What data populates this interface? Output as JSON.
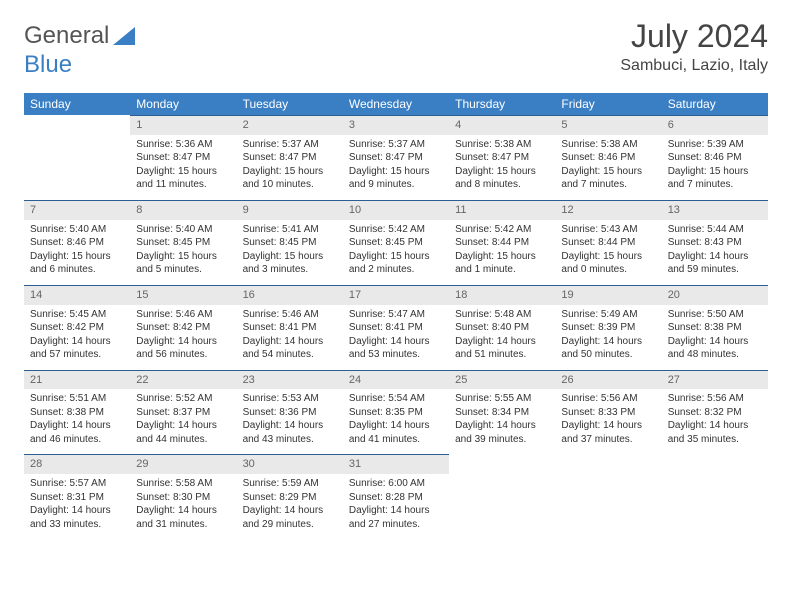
{
  "brand": {
    "part1": "General",
    "part2": "Blue"
  },
  "title": "July 2024",
  "location": "Sambuci, Lazio, Italy",
  "colors": {
    "header_bg": "#3a7fc4",
    "header_text": "#ffffff",
    "daynum_bg": "#e9e9e9",
    "daynum_border": "#2b5f93",
    "page_bg": "#ffffff",
    "text": "#333333"
  },
  "weekdays": [
    "Sunday",
    "Monday",
    "Tuesday",
    "Wednesday",
    "Thursday",
    "Friday",
    "Saturday"
  ],
  "weeks": [
    [
      {
        "n": "",
        "sr": "",
        "ss": "",
        "dl": ""
      },
      {
        "n": "1",
        "sr": "Sunrise: 5:36 AM",
        "ss": "Sunset: 8:47 PM",
        "dl": "Daylight: 15 hours and 11 minutes."
      },
      {
        "n": "2",
        "sr": "Sunrise: 5:37 AM",
        "ss": "Sunset: 8:47 PM",
        "dl": "Daylight: 15 hours and 10 minutes."
      },
      {
        "n": "3",
        "sr": "Sunrise: 5:37 AM",
        "ss": "Sunset: 8:47 PM",
        "dl": "Daylight: 15 hours and 9 minutes."
      },
      {
        "n": "4",
        "sr": "Sunrise: 5:38 AM",
        "ss": "Sunset: 8:47 PM",
        "dl": "Daylight: 15 hours and 8 minutes."
      },
      {
        "n": "5",
        "sr": "Sunrise: 5:38 AM",
        "ss": "Sunset: 8:46 PM",
        "dl": "Daylight: 15 hours and 7 minutes."
      },
      {
        "n": "6",
        "sr": "Sunrise: 5:39 AM",
        "ss": "Sunset: 8:46 PM",
        "dl": "Daylight: 15 hours and 7 minutes."
      }
    ],
    [
      {
        "n": "7",
        "sr": "Sunrise: 5:40 AM",
        "ss": "Sunset: 8:46 PM",
        "dl": "Daylight: 15 hours and 6 minutes."
      },
      {
        "n": "8",
        "sr": "Sunrise: 5:40 AM",
        "ss": "Sunset: 8:45 PM",
        "dl": "Daylight: 15 hours and 5 minutes."
      },
      {
        "n": "9",
        "sr": "Sunrise: 5:41 AM",
        "ss": "Sunset: 8:45 PM",
        "dl": "Daylight: 15 hours and 3 minutes."
      },
      {
        "n": "10",
        "sr": "Sunrise: 5:42 AM",
        "ss": "Sunset: 8:45 PM",
        "dl": "Daylight: 15 hours and 2 minutes."
      },
      {
        "n": "11",
        "sr": "Sunrise: 5:42 AM",
        "ss": "Sunset: 8:44 PM",
        "dl": "Daylight: 15 hours and 1 minute."
      },
      {
        "n": "12",
        "sr": "Sunrise: 5:43 AM",
        "ss": "Sunset: 8:44 PM",
        "dl": "Daylight: 15 hours and 0 minutes."
      },
      {
        "n": "13",
        "sr": "Sunrise: 5:44 AM",
        "ss": "Sunset: 8:43 PM",
        "dl": "Daylight: 14 hours and 59 minutes."
      }
    ],
    [
      {
        "n": "14",
        "sr": "Sunrise: 5:45 AM",
        "ss": "Sunset: 8:42 PM",
        "dl": "Daylight: 14 hours and 57 minutes."
      },
      {
        "n": "15",
        "sr": "Sunrise: 5:46 AM",
        "ss": "Sunset: 8:42 PM",
        "dl": "Daylight: 14 hours and 56 minutes."
      },
      {
        "n": "16",
        "sr": "Sunrise: 5:46 AM",
        "ss": "Sunset: 8:41 PM",
        "dl": "Daylight: 14 hours and 54 minutes."
      },
      {
        "n": "17",
        "sr": "Sunrise: 5:47 AM",
        "ss": "Sunset: 8:41 PM",
        "dl": "Daylight: 14 hours and 53 minutes."
      },
      {
        "n": "18",
        "sr": "Sunrise: 5:48 AM",
        "ss": "Sunset: 8:40 PM",
        "dl": "Daylight: 14 hours and 51 minutes."
      },
      {
        "n": "19",
        "sr": "Sunrise: 5:49 AM",
        "ss": "Sunset: 8:39 PM",
        "dl": "Daylight: 14 hours and 50 minutes."
      },
      {
        "n": "20",
        "sr": "Sunrise: 5:50 AM",
        "ss": "Sunset: 8:38 PM",
        "dl": "Daylight: 14 hours and 48 minutes."
      }
    ],
    [
      {
        "n": "21",
        "sr": "Sunrise: 5:51 AM",
        "ss": "Sunset: 8:38 PM",
        "dl": "Daylight: 14 hours and 46 minutes."
      },
      {
        "n": "22",
        "sr": "Sunrise: 5:52 AM",
        "ss": "Sunset: 8:37 PM",
        "dl": "Daylight: 14 hours and 44 minutes."
      },
      {
        "n": "23",
        "sr": "Sunrise: 5:53 AM",
        "ss": "Sunset: 8:36 PM",
        "dl": "Daylight: 14 hours and 43 minutes."
      },
      {
        "n": "24",
        "sr": "Sunrise: 5:54 AM",
        "ss": "Sunset: 8:35 PM",
        "dl": "Daylight: 14 hours and 41 minutes."
      },
      {
        "n": "25",
        "sr": "Sunrise: 5:55 AM",
        "ss": "Sunset: 8:34 PM",
        "dl": "Daylight: 14 hours and 39 minutes."
      },
      {
        "n": "26",
        "sr": "Sunrise: 5:56 AM",
        "ss": "Sunset: 8:33 PM",
        "dl": "Daylight: 14 hours and 37 minutes."
      },
      {
        "n": "27",
        "sr": "Sunrise: 5:56 AM",
        "ss": "Sunset: 8:32 PM",
        "dl": "Daylight: 14 hours and 35 minutes."
      }
    ],
    [
      {
        "n": "28",
        "sr": "Sunrise: 5:57 AM",
        "ss": "Sunset: 8:31 PM",
        "dl": "Daylight: 14 hours and 33 minutes."
      },
      {
        "n": "29",
        "sr": "Sunrise: 5:58 AM",
        "ss": "Sunset: 8:30 PM",
        "dl": "Daylight: 14 hours and 31 minutes."
      },
      {
        "n": "30",
        "sr": "Sunrise: 5:59 AM",
        "ss": "Sunset: 8:29 PM",
        "dl": "Daylight: 14 hours and 29 minutes."
      },
      {
        "n": "31",
        "sr": "Sunrise: 6:00 AM",
        "ss": "Sunset: 8:28 PM",
        "dl": "Daylight: 14 hours and 27 minutes."
      },
      {
        "n": "",
        "sr": "",
        "ss": "",
        "dl": ""
      },
      {
        "n": "",
        "sr": "",
        "ss": "",
        "dl": ""
      },
      {
        "n": "",
        "sr": "",
        "ss": "",
        "dl": ""
      }
    ]
  ]
}
